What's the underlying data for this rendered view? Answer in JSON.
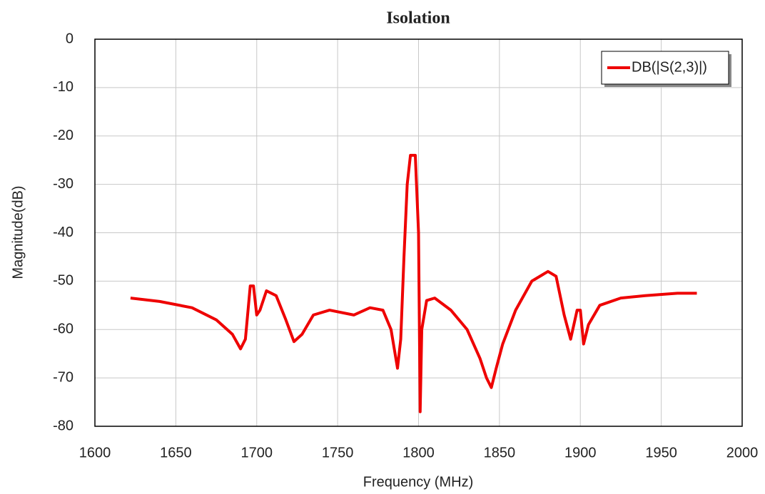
{
  "chart_data": {
    "type": "line",
    "title": "Isolation",
    "x_label": "Frequency (MHz)",
    "y_label": "Magnitude(dB)",
    "x": [
      1622,
      1640,
      1660,
      1675,
      1685,
      1690,
      1693,
      1696,
      1698,
      1700,
      1702,
      1706,
      1712,
      1718,
      1723,
      1728,
      1735,
      1745,
      1760,
      1770,
      1778,
      1783,
      1787,
      1789,
      1791,
      1793,
      1795,
      1798,
      1800,
      1801,
      1802,
      1805,
      1810,
      1820,
      1830,
      1838,
      1842,
      1845,
      1848,
      1852,
      1860,
      1870,
      1880,
      1885,
      1890,
      1894,
      1898,
      1900,
      1902,
      1905,
      1912,
      1925,
      1940,
      1960,
      1972
    ],
    "series": [
      {
        "name": "DB(|S(2,3)|)",
        "color": "#ee0000",
        "values": [
          -53.5,
          -54.2,
          -55.5,
          -58,
          -61,
          -64,
          -62,
          -51,
          -51,
          -57,
          -56,
          -52,
          -53,
          -58,
          -62.5,
          -61,
          -57,
          -56,
          -57,
          -55.5,
          -56,
          -60,
          -68,
          -62,
          -45,
          -30,
          -24,
          -24,
          -40,
          -77,
          -60,
          -54,
          -53.5,
          -56,
          -60,
          -66,
          -70,
          -72,
          -68,
          -63,
          -56,
          -50,
          -48,
          -49,
          -57,
          -62,
          -56,
          -56,
          -63,
          -59,
          -55,
          -53.5,
          -53,
          -52.5,
          -52.5
        ]
      }
    ],
    "xlim": [
      1600,
      2000
    ],
    "xticks": [
      1600,
      1650,
      1700,
      1750,
      1800,
      1850,
      1900,
      1950,
      2000
    ],
    "ylim": [
      -80,
      0
    ],
    "yticks": [
      0,
      -10,
      -20,
      -30,
      -40,
      -50,
      -60,
      -70,
      -80
    ],
    "grid": true,
    "legend": "top-right"
  }
}
